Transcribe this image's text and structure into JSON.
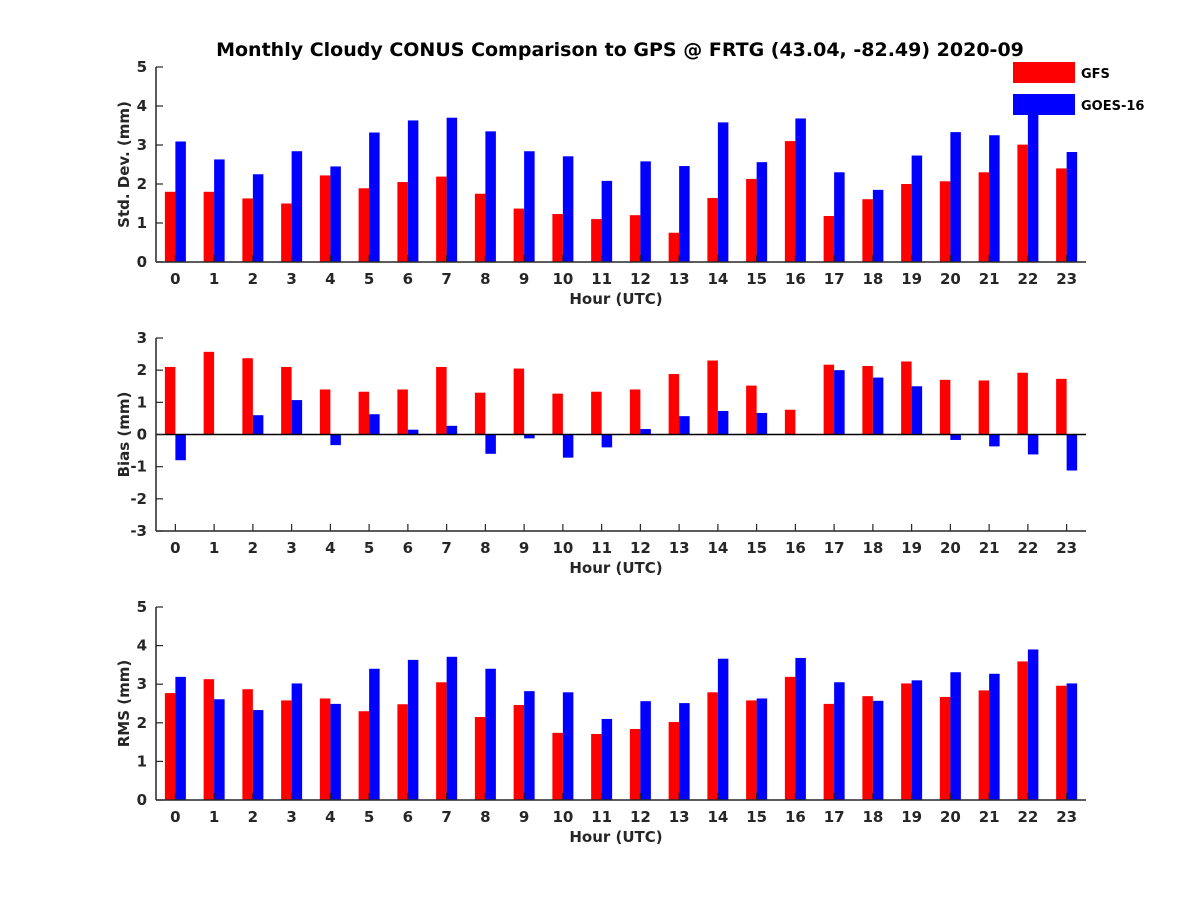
{
  "chart_data": {
    "title": "Monthly Cloudy CONUS Comparison to GPS @ FRTG (43.04, -82.49) 2020-09",
    "legend": [
      {
        "name": "GFS",
        "color": "#ff0000"
      },
      {
        "name": "GOES-16",
        "color": "#0000ff"
      }
    ],
    "legend_location": "top-right",
    "panels": [
      {
        "type": "bar",
        "xlabel": "Hour (UTC)",
        "ylabel": "Std. Dev. (mm)",
        "ylim": [
          0,
          5
        ],
        "yticks": [
          "0",
          "1",
          "2",
          "3",
          "4",
          "5"
        ],
        "categories": [
          "0",
          "1",
          "2",
          "3",
          "4",
          "5",
          "6",
          "7",
          "8",
          "9",
          "10",
          "11",
          "12",
          "13",
          "14",
          "15",
          "16",
          "17",
          "18",
          "19",
          "20",
          "21",
          "22",
          "23"
        ],
        "series": [
          {
            "name": "GFS",
            "values": [
              1.8,
              1.8,
              1.63,
              1.5,
              2.22,
              1.89,
              2.05,
              2.19,
              1.75,
              1.37,
              1.23,
              1.1,
              1.2,
              0.75,
              1.64,
              2.13,
              3.1,
              1.18,
              1.61,
              2.0,
              2.07,
              2.3,
              3.01,
              2.4
            ]
          },
          {
            "name": "GOES-16",
            "values": [
              3.09,
              2.63,
              2.25,
              2.84,
              2.45,
              3.32,
              3.63,
              3.7,
              3.35,
              2.84,
              2.71,
              2.08,
              2.58,
              2.46,
              3.58,
              2.56,
              3.68,
              2.3,
              1.85,
              2.73,
              3.33,
              3.25,
              3.83,
              2.82
            ]
          }
        ]
      },
      {
        "type": "bar",
        "xlabel": "Hour (UTC)",
        "ylabel": "Bias (mm)",
        "ylim": [
          -3,
          3
        ],
        "yticks": [
          "-3",
          "-2",
          "-1",
          "0",
          "1",
          "2",
          "3"
        ],
        "categories": [
          "0",
          "1",
          "2",
          "3",
          "4",
          "5",
          "6",
          "7",
          "8",
          "9",
          "10",
          "11",
          "12",
          "13",
          "14",
          "15",
          "16",
          "17",
          "18",
          "19",
          "20",
          "21",
          "22",
          "23"
        ],
        "series": [
          {
            "name": "GFS",
            "values": [
              2.1,
              2.57,
              2.37,
              2.1,
              1.4,
              1.33,
              1.4,
              2.1,
              1.3,
              2.05,
              1.27,
              1.33,
              1.4,
              1.88,
              2.3,
              1.52,
              0.77,
              2.17,
              2.13,
              2.27,
              1.7,
              1.68,
              1.92,
              1.73
            ]
          },
          {
            "name": "GOES-16",
            "values": [
              -0.8,
              0.0,
              0.6,
              1.07,
              -0.33,
              0.63,
              0.15,
              0.27,
              -0.6,
              -0.12,
              -0.72,
              -0.4,
              0.17,
              0.57,
              0.73,
              0.67,
              0.0,
              2.0,
              1.77,
              1.5,
              -0.17,
              -0.37,
              -0.62,
              -1.12
            ]
          }
        ]
      },
      {
        "type": "bar",
        "xlabel": "Hour (UTC)",
        "ylabel": "RMS (mm)",
        "ylim": [
          0,
          5
        ],
        "yticks": [
          "0",
          "1",
          "2",
          "3",
          "4",
          "5"
        ],
        "categories": [
          "0",
          "1",
          "2",
          "3",
          "4",
          "5",
          "6",
          "7",
          "8",
          "9",
          "10",
          "11",
          "12",
          "13",
          "14",
          "15",
          "16",
          "17",
          "18",
          "19",
          "20",
          "21",
          "22",
          "23"
        ],
        "series": [
          {
            "name": "GFS",
            "values": [
              2.77,
              3.13,
              2.87,
              2.58,
              2.63,
              2.3,
              2.48,
              3.05,
              2.15,
              2.46,
              1.74,
              1.71,
              1.84,
              2.02,
              2.79,
              2.58,
              3.19,
              2.49,
              2.69,
              3.02,
              2.67,
              2.84,
              3.59,
              2.96
            ]
          },
          {
            "name": "GOES-16",
            "values": [
              3.19,
              2.61,
              2.33,
              3.02,
              2.49,
              3.4,
              3.63,
              3.71,
              3.4,
              2.82,
              2.79,
              2.1,
              2.56,
              2.51,
              3.66,
              2.63,
              3.68,
              3.05,
              2.57,
              3.1,
              3.31,
              3.27,
              3.9,
              3.02
            ]
          }
        ]
      }
    ]
  }
}
